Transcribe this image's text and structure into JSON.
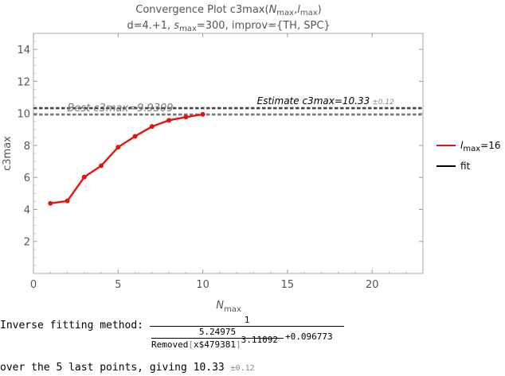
{
  "chart_data": {
    "type": "line",
    "title": {
      "main": "Convergence Plot c3max(",
      "n_sym": "N",
      "n_sub": "max",
      "comma": ",",
      "l_sym": "l",
      "l_sub": "max",
      "close": ")"
    },
    "subtitle": {
      "pre": "d=4.+1, ",
      "s_sym": "s",
      "s_sub": "max",
      "post": "=300, improv={TH, SPC}"
    },
    "xlabel": {
      "sym": "N",
      "sub": "max"
    },
    "ylabel": "c3max",
    "xlim": [
      0,
      23
    ],
    "ylim": [
      0,
      15
    ],
    "x_ticks": [
      "0",
      "5",
      "10",
      "15",
      "20"
    ],
    "y_ticks": [
      "2",
      "4",
      "6",
      "8",
      "10",
      "12",
      "14"
    ],
    "series": [
      {
        "name_sym": "l",
        "name_sub": "max",
        "name_post": "=16",
        "color": "#e8120c",
        "x": [
          1,
          2,
          3,
          4,
          5,
          6,
          7,
          8,
          9,
          10
        ],
        "y": [
          4.38,
          4.53,
          6.02,
          6.73,
          7.89,
          8.57,
          9.18,
          9.57,
          9.77,
          9.94
        ]
      }
    ],
    "reference_lines": [
      {
        "y": 10.33,
        "label": "fit"
      },
      {
        "y": 9.93
      }
    ],
    "annotations": {
      "estimate_label": "Estimate c3max=10.33",
      "estimate_pm": "±0.12",
      "best_label": "Best c3max=9.9309"
    },
    "legend": {
      "placement": "right",
      "fit_label": "fit",
      "fit_color": "#000000"
    },
    "grid": false
  },
  "fitting": {
    "prefix": "Inverse fitting method: ",
    "numerator": "1",
    "inner_numerator": "5.24975",
    "inner_den_pre": "Removed",
    "inner_den_open": "[",
    "inner_den_arg": "x$479381",
    "inner_den_close": "]",
    "inner_den_exp": "3.11092",
    "plus_const": "+0.096773",
    "result_text": "over the 5 last points, giving 10.33",
    "result_pm": "±0.12"
  }
}
